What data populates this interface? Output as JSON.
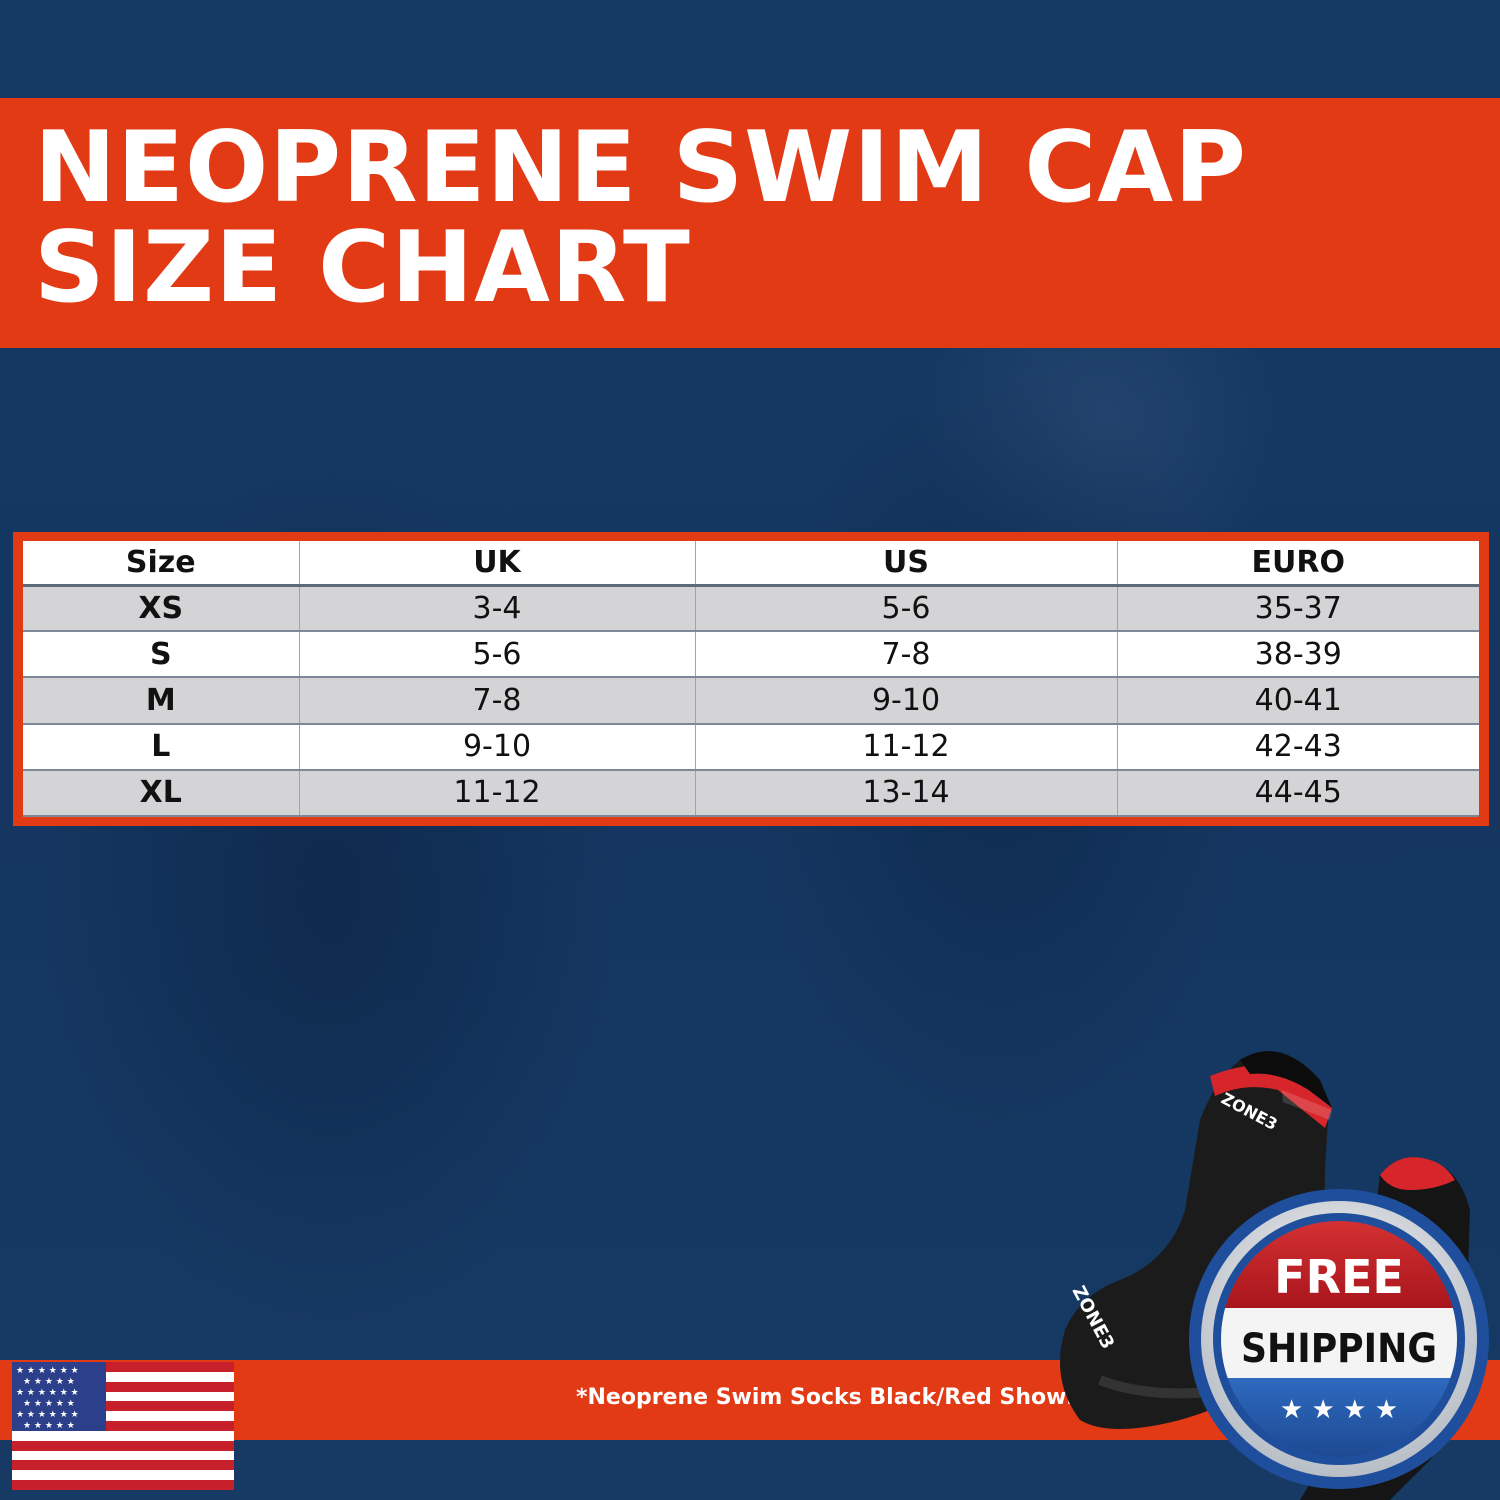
{
  "title": {
    "line1": "NEOPRENE SWIM CAP",
    "line2": "SIZE CHART"
  },
  "table": {
    "headers": [
      "Size",
      "UK",
      "US",
      "EURO"
    ],
    "rows": [
      [
        "XS",
        "3-4",
        "5-6",
        "35-37"
      ],
      [
        "S",
        "5-6",
        "7-8",
        "38-39"
      ],
      [
        "M",
        "7-8",
        "9-10",
        "40-41"
      ],
      [
        "L",
        "9-10",
        "11-12",
        "42-43"
      ],
      [
        "XL",
        "11-12",
        "13-14",
        "44-45"
      ]
    ]
  },
  "footnote": "*Neoprene Swim Socks Black/Red Shown",
  "badge": {
    "line1": "FREE",
    "line2": "SHIPPING",
    "stars": "★ ★ ★ ★"
  },
  "product_logo": "ZONE3",
  "colors": {
    "accent": "#e33a16",
    "background": "#163a63",
    "badge_red": "#c8202a",
    "badge_blue": "#1f4f9c"
  },
  "icons": [
    "us-flag-icon",
    "free-shipping-badge-icon",
    "swim-sock-image"
  ]
}
